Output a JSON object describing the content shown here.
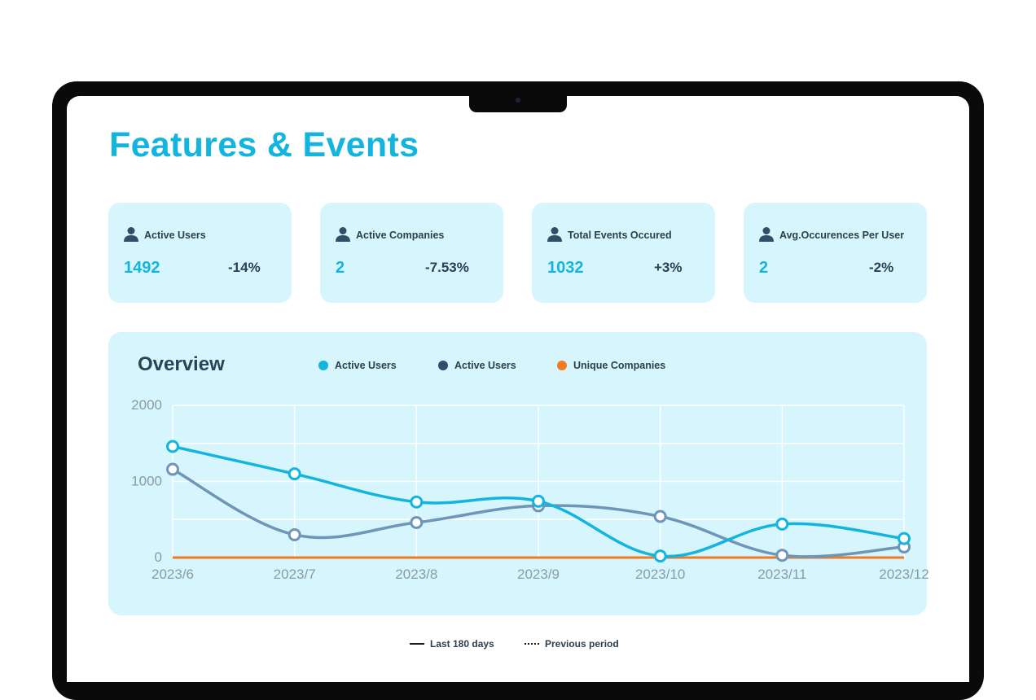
{
  "page": {
    "title": "Features & Events"
  },
  "kpis": [
    {
      "label": "Active Users",
      "value": "1492",
      "delta": "-14%",
      "icon": "user-icon"
    },
    {
      "label": "Active Companies",
      "value": "2",
      "delta": "-7.53%",
      "icon": "user-icon"
    },
    {
      "label": "Total Events Occured",
      "value": "1032",
      "delta": "+3%",
      "icon": "user-icon"
    },
    {
      "label": "Avg.Occurences Per User",
      "value": "2",
      "delta": "-2%",
      "icon": "user-icon"
    }
  ],
  "overview": {
    "title": "Overview",
    "legend": [
      {
        "label": "Active Users",
        "color": "#13b5df"
      },
      {
        "label": "Active Users",
        "color": "#2f4e68"
      },
      {
        "label": "Unique Companies",
        "color": "#f07b22"
      }
    ]
  },
  "chart_data": {
    "type": "line",
    "categories": [
      "2023/6",
      "2023/7",
      "2023/8",
      "2023/9",
      "2023/10",
      "2023/11",
      "2023/12"
    ],
    "ylim": [
      0,
      2000
    ],
    "yticks": [
      "2000",
      "1000",
      "0"
    ],
    "grid": true,
    "series": [
      {
        "name": "Active Users",
        "color": "#13b5df",
        "values": [
          1460,
          1100,
          730,
          740,
          20,
          440,
          250
        ]
      },
      {
        "name": "Active Users",
        "color": "#6f95b8",
        "values": [
          1160,
          300,
          460,
          680,
          540,
          30,
          140
        ]
      },
      {
        "name": "Unique Companies",
        "color": "#f07b22",
        "values": [
          0,
          0,
          0,
          0,
          0,
          0,
          0
        ]
      }
    ]
  },
  "footer": {
    "current_label": "Last 180 days",
    "previous_label": "Previous period"
  }
}
